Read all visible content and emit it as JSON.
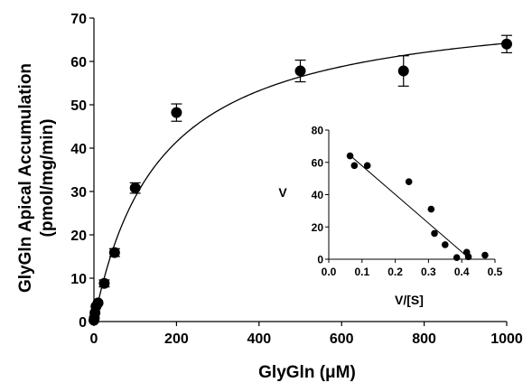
{
  "chart_data": [
    {
      "type": "scatter",
      "title": "",
      "xlabel": "GlyGln (μM)",
      "ylabel_line1": "GlyGln Apical Accumulation",
      "ylabel_line2": "(pmol/mg/min)",
      "xlim": [
        0,
        1000
      ],
      "ylim": [
        0,
        70
      ],
      "xticks": [
        0,
        200,
        400,
        600,
        800,
        1000
      ],
      "yticks": [
        0,
        10,
        20,
        30,
        40,
        50,
        60,
        70
      ],
      "grid": false,
      "series": [
        {
          "marker": "filled-circle",
          "color": "#000000",
          "x": [
            0,
            1,
            2.5,
            5,
            10,
            25,
            50,
            100,
            200,
            500,
            750,
            1000
          ],
          "y": [
            0.3,
            0.8,
            2.0,
            3.5,
            4.3,
            8.8,
            15.9,
            30.8,
            48.2,
            57.8,
            57.8,
            64.0
          ],
          "err": [
            0,
            0,
            0,
            0,
            0,
            0.8,
            0.9,
            1.2,
            2.0,
            2.5,
            3.5,
            2.0
          ]
        },
        {
          "type": "line",
          "style": "michaelis-menten-fit",
          "Vmax": 74.4,
          "Km": 159,
          "color": "#000000"
        }
      ]
    },
    {
      "type": "scatter",
      "title": "",
      "xlabel": "V/[S]",
      "ylabel": "V",
      "xlim": [
        0,
        0.5
      ],
      "ylim": [
        0,
        80
      ],
      "xticks": [
        "0.0",
        "0.1",
        "0.2",
        "0.3",
        "0.4",
        "0.5"
      ],
      "yticks": [
        0,
        20,
        40,
        60,
        80
      ],
      "grid": false,
      "series": [
        {
          "marker": "filled-circle",
          "color": "#000000",
          "x": [
            0.064,
            0.077,
            0.116,
            0.241,
            0.308,
            0.318,
            0.35,
            0.385,
            0.415,
            0.42,
            0.47
          ],
          "y": [
            64,
            58,
            58,
            48,
            31,
            16,
            9,
            1,
            4.3,
            1.5,
            2.5
          ]
        },
        {
          "type": "line",
          "style": "linear-fit",
          "x": [
            0.06,
            0.42
          ],
          "y": [
            65,
            1
          ],
          "color": "#000000"
        }
      ]
    }
  ]
}
